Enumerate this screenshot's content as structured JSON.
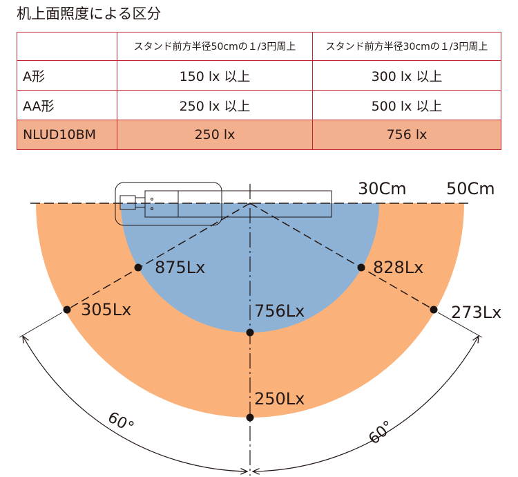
{
  "title": "机上面照度による区分",
  "table": {
    "header": [
      "",
      "スタンド前方半径50cmの１/3円周上",
      "スタンド前方半径30cmの１/3円周上"
    ],
    "rows": [
      {
        "name": "A形",
        "v50": "150 lx 以上",
        "v30": "300 lx 以上"
      },
      {
        "name": "AA形",
        "v50": "250 lx 以上",
        "v30": "500 lx 以上"
      },
      {
        "name": "NLUD10BM",
        "v50": "250 lx",
        "v30": "756 lx"
      }
    ]
  },
  "diagram": {
    "radius_labels": {
      "inner": "30Cm",
      "outer": "50Cm"
    },
    "colors": {
      "outer_zone": "#fbb27a",
      "inner_zone": "#8eb2d6",
      "line": "#231815"
    },
    "points": {
      "inner_left": "875Lx",
      "inner_right": "828Lx",
      "inner_center": "756Lx",
      "outer_left": "305Lx",
      "outer_right": "273Lx",
      "outer_center": "250Lx"
    },
    "angle_label": "60°"
  }
}
